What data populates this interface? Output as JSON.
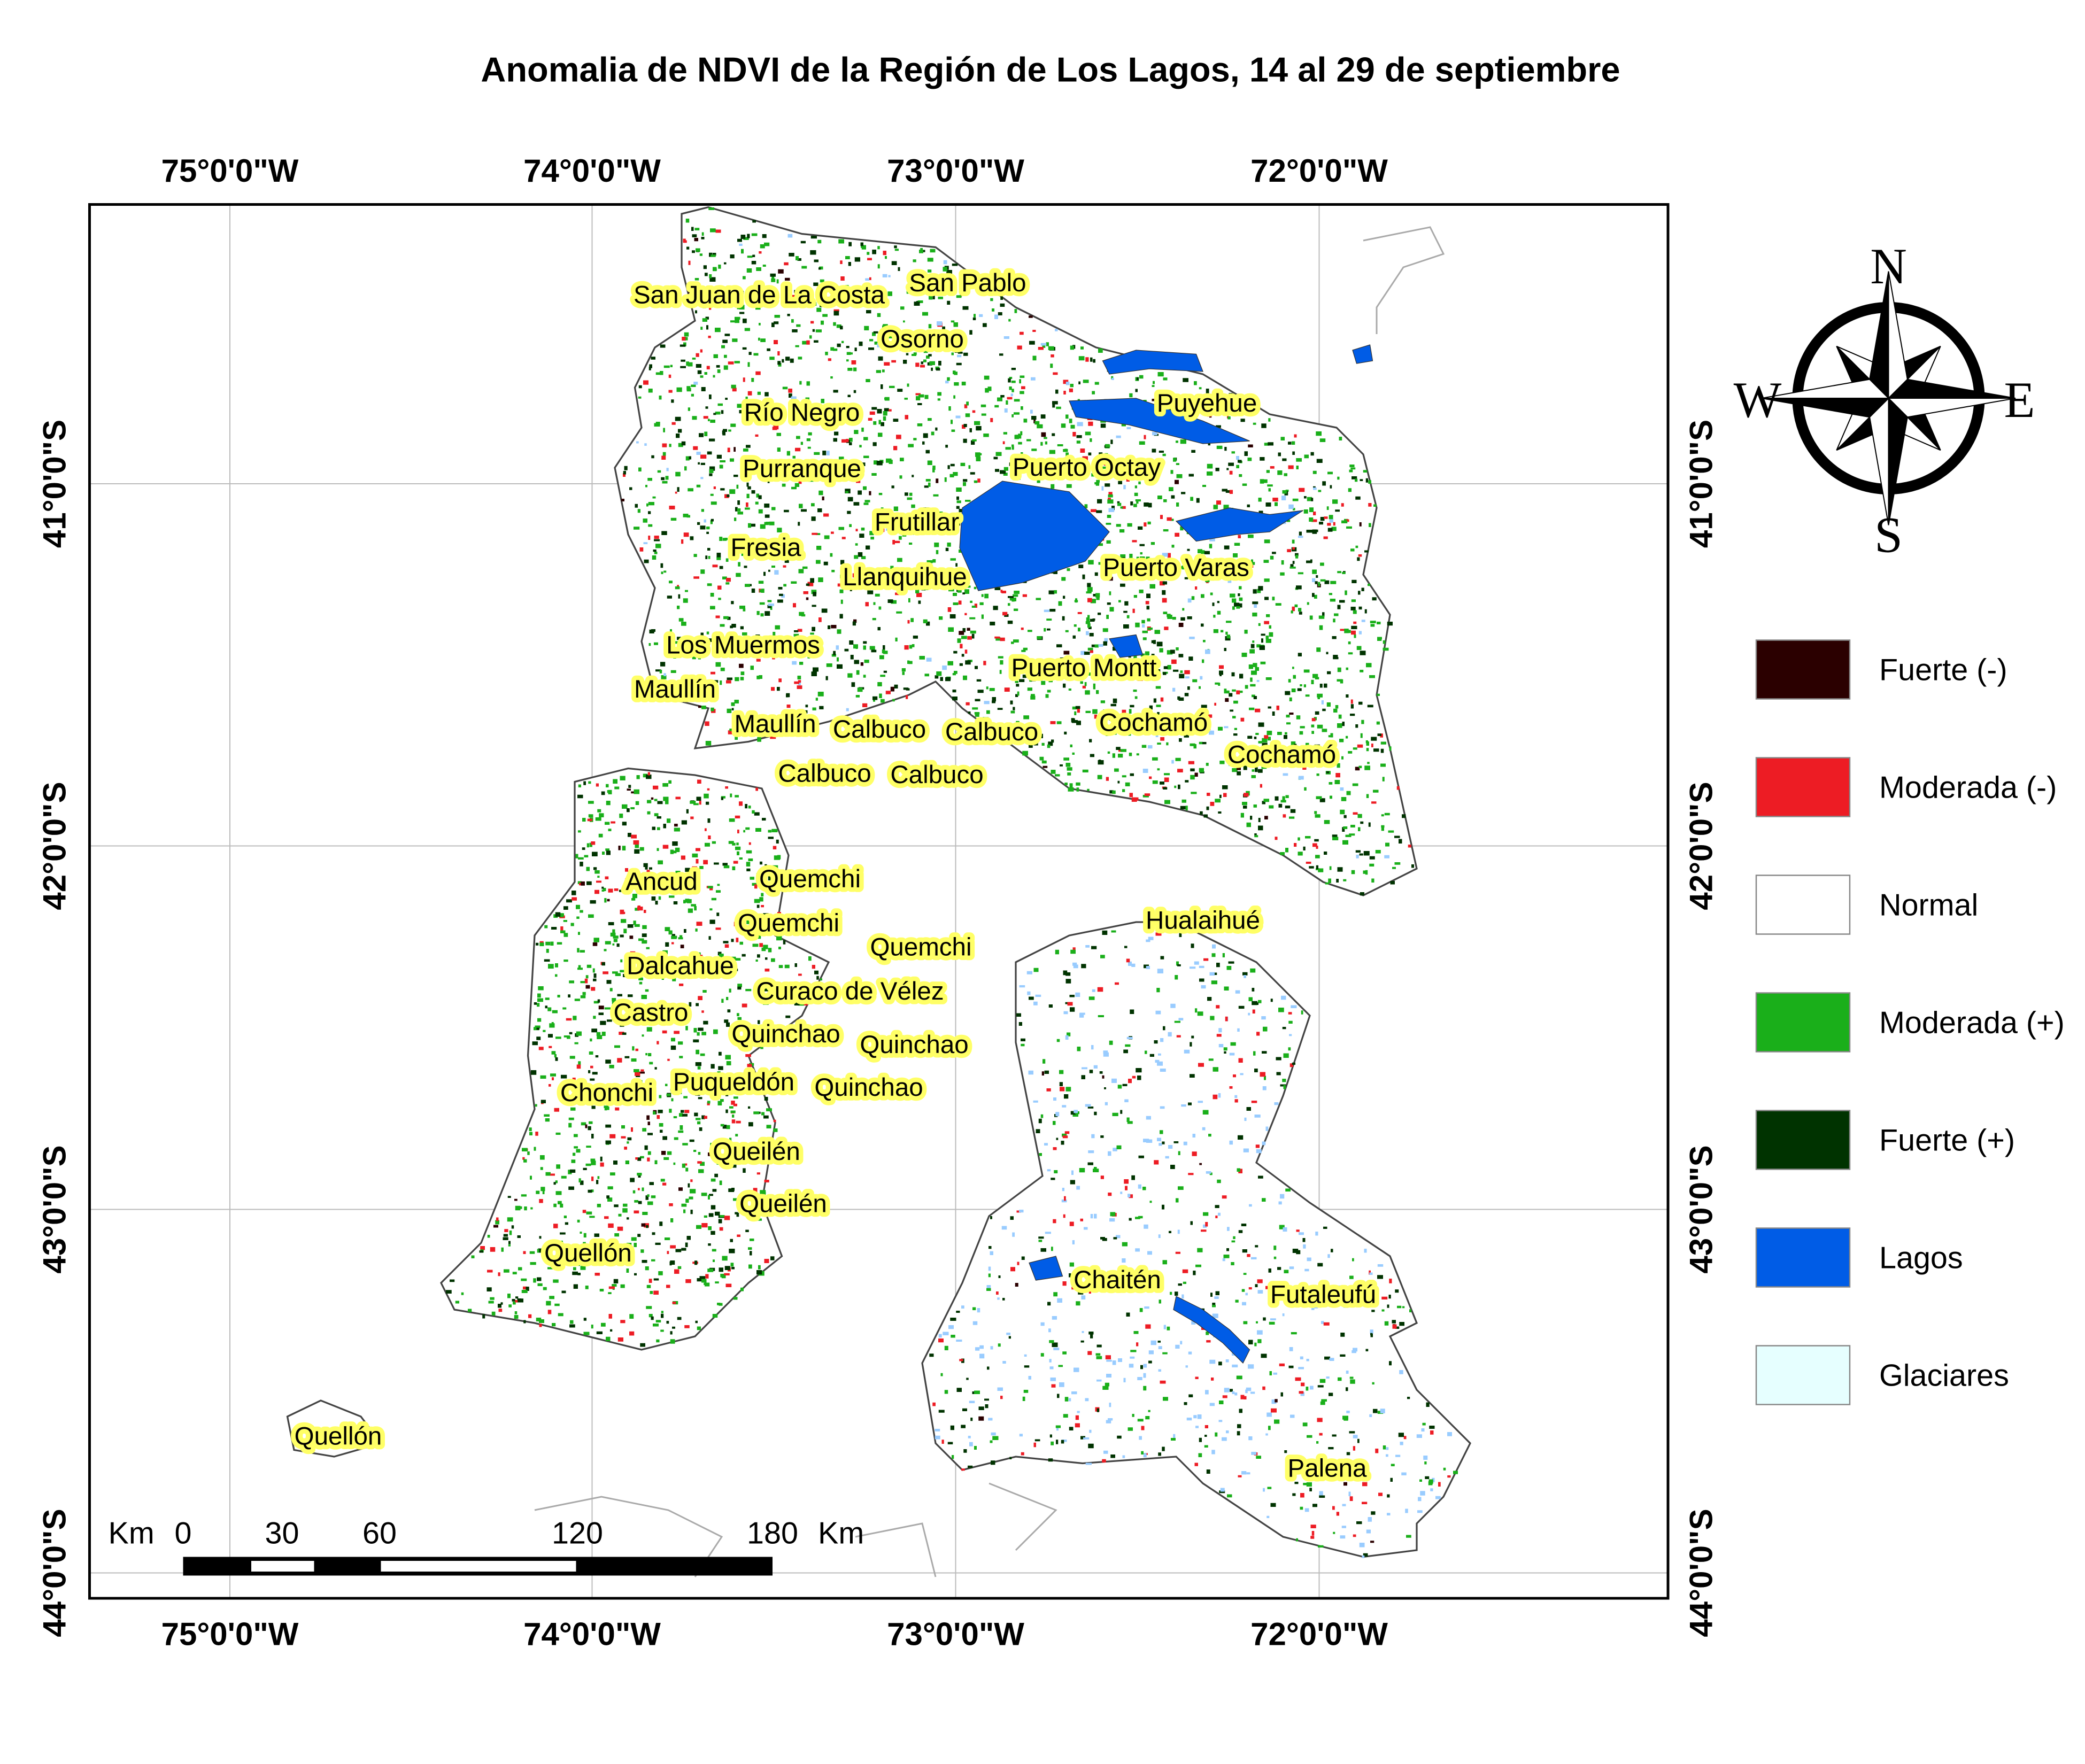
{
  "title": "Anomalia de NDVI de la Región de Los Lagos, 14 al 29 de septiembre",
  "axes": {
    "longitude_labels": [
      "75°0'0\"W",
      "74°0'0\"W",
      "73°0'0\"W",
      "72°0'0\"W"
    ],
    "latitude_labels": [
      "41°0'0\"S",
      "42°0'0\"S",
      "43°0'0\"S",
      "44°0'0\"S"
    ]
  },
  "towns": [
    "San Juan de La Costa",
    "San Pablo",
    "Osorno",
    "Puyehue",
    "Río Negro",
    "Purranque",
    "Puerto Octay",
    "Frutillar",
    "Fresia",
    "Llanquihue",
    "Puerto Varas",
    "Los Muermos",
    "Puerto Montt",
    "Maullín",
    "Maullín",
    "Calbuco",
    "Calbuco",
    "Cochamó",
    "Cochamó",
    "Calbuco",
    "Calbuco",
    "Ancud",
    "Quemchi",
    "Quemchi",
    "Hualaihué",
    "Quemchi",
    "Dalcahue",
    "Curaco de Vélez",
    "Castro",
    "Quinchao",
    "Quinchao",
    "Puqueldón",
    "Quinchao",
    "Chonchi",
    "Queilén",
    "Queilén",
    "Quellón",
    "Chaitén",
    "Futaleufú",
    "Quellón",
    "Palena"
  ],
  "legend": [
    {
      "label": "Fuerte (-)",
      "color": "#2b0000"
    },
    {
      "label": "Moderada (-)",
      "color": "#ed1c24"
    },
    {
      "label": "Normal",
      "color": "#ffffff"
    },
    {
      "label": "Moderada (+)",
      "color": "#1aaf1a"
    },
    {
      "label": "Fuerte (+)",
      "color": "#003300"
    },
    {
      "label": "Lagos",
      "color": "#005ce6"
    },
    {
      "label": "Glaciares",
      "color": "#e6ffff"
    }
  ],
  "compass": {
    "n": "N",
    "s": "S",
    "e": "E",
    "w": "W"
  },
  "scale_bar": {
    "unit_left": "Km",
    "ticks": [
      "0",
      "30",
      "60",
      "120",
      "180"
    ],
    "unit_right": "Km"
  }
}
